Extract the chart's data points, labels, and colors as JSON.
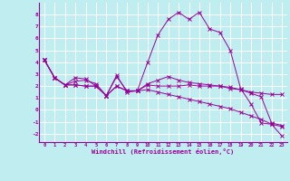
{
  "xlabel": "Windchill (Refroidissement éolien,°C)",
  "xlim": [
    -0.5,
    23.5
  ],
  "ylim": [
    -2.7,
    9.0
  ],
  "xticks": [
    0,
    1,
    2,
    3,
    4,
    5,
    6,
    7,
    8,
    9,
    10,
    11,
    12,
    13,
    14,
    15,
    16,
    17,
    18,
    19,
    20,
    21,
    22,
    23
  ],
  "yticks": [
    -2,
    -1,
    0,
    1,
    2,
    3,
    4,
    5,
    6,
    7,
    8
  ],
  "bg_color": "#c0eef0",
  "grid_color": "#ffffff",
  "line_color": "#990099",
  "series": [
    [
      4.2,
      2.7,
      2.1,
      2.7,
      2.6,
      2.0,
      1.2,
      2.9,
      1.5,
      1.6,
      4.0,
      6.3,
      7.6,
      8.2,
      7.6,
      8.2,
      6.8,
      6.5,
      5.0,
      1.8,
      0.5,
      -1.1,
      -1.2,
      -1.4
    ],
    [
      4.2,
      2.7,
      2.1,
      2.1,
      2.0,
      2.0,
      1.2,
      2.0,
      1.6,
      1.6,
      2.1,
      2.0,
      2.0,
      2.0,
      2.1,
      2.0,
      2.0,
      2.0,
      1.8,
      1.7,
      1.5,
      1.4,
      1.3,
      1.3
    ],
    [
      4.2,
      2.7,
      2.1,
      2.1,
      2.0,
      2.0,
      1.2,
      2.0,
      1.6,
      1.6,
      1.7,
      1.5,
      1.3,
      1.1,
      0.9,
      0.7,
      0.5,
      0.3,
      0.1,
      -0.2,
      -0.5,
      -0.8,
      -1.2,
      -2.2
    ],
    [
      4.2,
      2.7,
      2.1,
      2.4,
      2.5,
      2.2,
      1.2,
      2.8,
      1.6,
      1.6,
      2.2,
      2.5,
      2.8,
      2.5,
      2.3,
      2.2,
      2.1,
      2.0,
      1.9,
      1.7,
      1.4,
      1.1,
      -1.1,
      -1.3
    ]
  ]
}
